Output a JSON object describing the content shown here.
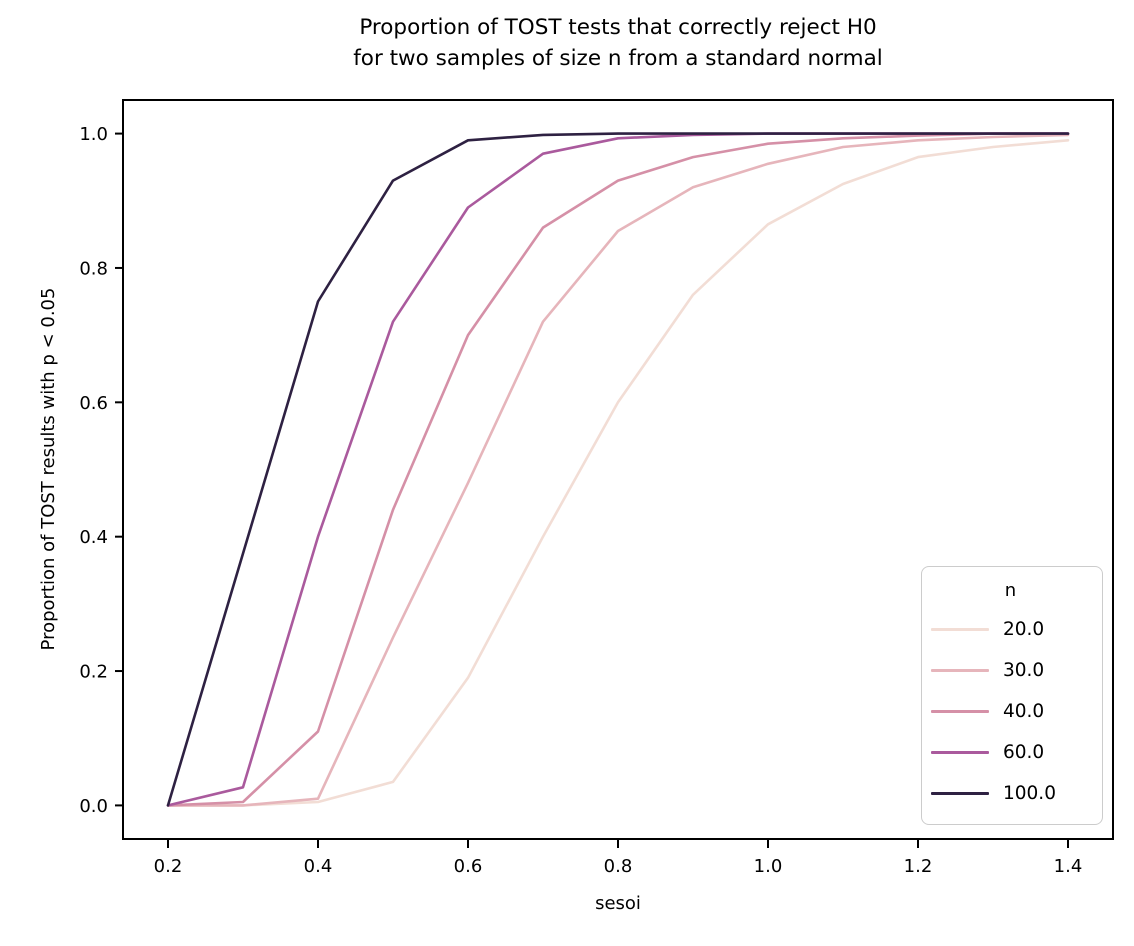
{
  "title": {
    "line1": "Proportion of TOST tests that correctly reject H0",
    "line2": "for two samples of size n from a standard normal"
  },
  "axes": {
    "xlabel": "sesoi",
    "ylabel": "Proportion of TOST results with p < 0.05",
    "x_tick_labels": [
      "0.2",
      "0.4",
      "0.6",
      "0.8",
      "1.0",
      "1.2",
      "1.4"
    ],
    "x_tick_values": [
      0.2,
      0.4,
      0.6,
      0.8,
      1.0,
      1.2,
      1.4
    ],
    "y_tick_labels": [
      "0.0",
      "0.2",
      "0.4",
      "0.6",
      "0.8",
      "1.0"
    ],
    "y_tick_values": [
      0.0,
      0.2,
      0.4,
      0.6,
      0.8,
      1.0
    ]
  },
  "legend": {
    "title": "n",
    "entries": [
      {
        "label": "20.0",
        "color": "#f2ddd5"
      },
      {
        "label": "30.0",
        "color": "#e6b5bb"
      },
      {
        "label": "40.0",
        "color": "#d590a7"
      },
      {
        "label": "60.0",
        "color": "#aa5a9d"
      },
      {
        "label": "100.0",
        "color": "#2e2142"
      }
    ]
  },
  "chart_data": {
    "type": "line",
    "title": "Proportion of TOST tests that correctly reject H0 for two samples of size n from a standard normal",
    "xlabel": "sesoi",
    "ylabel": "Proportion of TOST results with p < 0.05",
    "x": [
      0.2,
      0.3,
      0.4,
      0.5,
      0.6,
      0.7,
      0.8,
      0.9,
      1.0,
      1.1,
      1.2,
      1.3,
      1.4
    ],
    "series": [
      {
        "name": "20.0",
        "color": "#f2ddd5",
        "values": [
          0.0,
          0.0,
          0.005,
          0.035,
          0.19,
          0.4,
          0.6,
          0.76,
          0.865,
          0.925,
          0.965,
          0.98,
          0.99
        ]
      },
      {
        "name": "30.0",
        "color": "#e6b5bb",
        "values": [
          0.0,
          0.0,
          0.01,
          0.25,
          0.48,
          0.72,
          0.855,
          0.92,
          0.955,
          0.98,
          0.99,
          0.995,
          0.998
        ]
      },
      {
        "name": "40.0",
        "color": "#d590a7",
        "values": [
          0.0,
          0.005,
          0.11,
          0.44,
          0.7,
          0.86,
          0.93,
          0.965,
          0.985,
          0.993,
          0.997,
          1.0,
          1.0
        ]
      },
      {
        "name": "60.0",
        "color": "#aa5a9d",
        "values": [
          0.0,
          0.027,
          0.4,
          0.72,
          0.89,
          0.97,
          0.993,
          0.998,
          1.0,
          1.0,
          1.0,
          1.0,
          1.0
        ]
      },
      {
        "name": "100.0",
        "color": "#2e2142",
        "values": [
          0.0,
          0.375,
          0.75,
          0.93,
          0.99,
          0.998,
          1.0,
          1.0,
          1.0,
          1.0,
          1.0,
          1.0,
          1.0
        ]
      }
    ],
    "xlim": [
      0.14,
      1.46
    ],
    "ylim": [
      -0.05,
      1.05
    ],
    "grid": false,
    "legend_title": "n",
    "legend_position": "lower right",
    "spine_color": "#000000"
  }
}
